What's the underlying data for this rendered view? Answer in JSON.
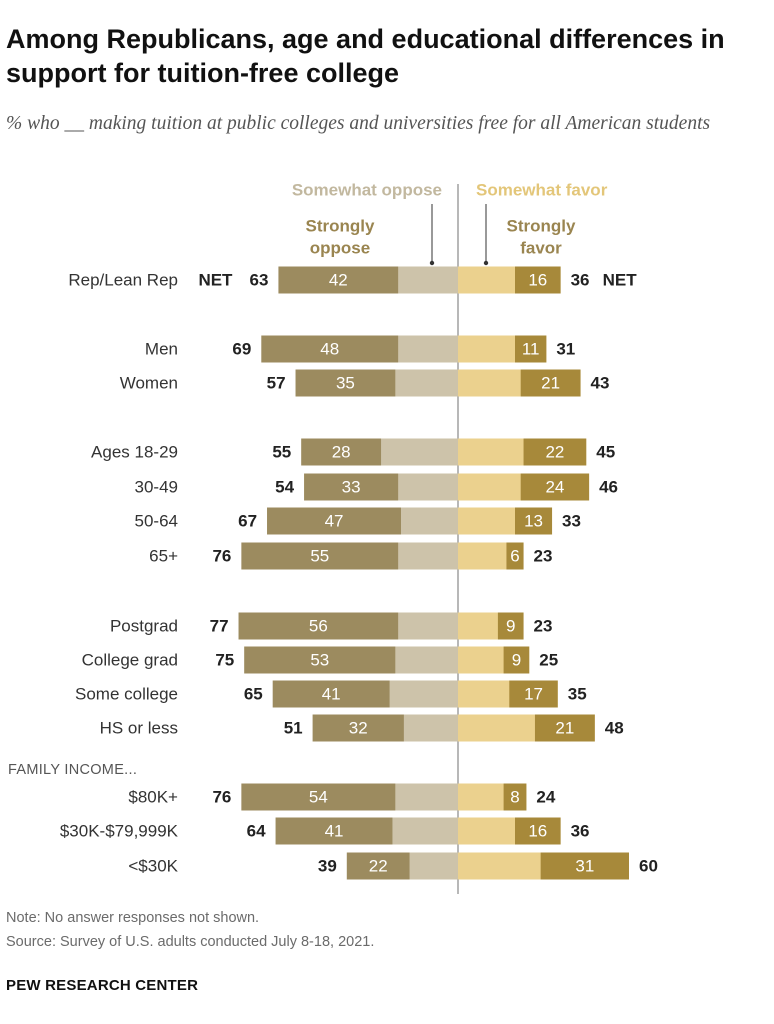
{
  "header": {
    "title": "Among Republicans, age and educational differences in support for tuition-free college",
    "subtitle": "% who __ making tuition at public colleges and universities free for all American students"
  },
  "legend": {
    "somewhat_oppose": "Somewhat oppose",
    "strongly_oppose": "Strongly oppose",
    "somewhat_favor": "Somewhat favor",
    "strongly_favor": "Strongly favor",
    "net_label": "NET"
  },
  "colors": {
    "strongly_oppose": "#9c8b5f",
    "somewhat_oppose": "#cdc3aa",
    "somewhat_favor": "#ebd18e",
    "strongly_favor": "#a7893a",
    "legend_somewhat_oppose_text": "#c2b89f",
    "legend_somewhat_favor_text": "#e3c679",
    "legend_strong_text": "#9a8550",
    "axis": "#888888"
  },
  "chart_data": {
    "type": "bar",
    "orientation": "horizontal",
    "layout": "diverging-stacked",
    "series": [
      {
        "name": "Strongly oppose"
      },
      {
        "name": "Somewhat oppose"
      },
      {
        "name": "Somewhat favor"
      },
      {
        "name": "Strongly favor"
      }
    ],
    "rows": [
      {
        "label": "Rep/Lean Rep",
        "strongly_oppose": 42,
        "oppose_net": 63,
        "strongly_favor": 16,
        "favor_net": 36,
        "show_net": true
      },
      {
        "label": "Men",
        "strongly_oppose": 48,
        "oppose_net": 69,
        "strongly_favor": 11,
        "favor_net": 31
      },
      {
        "label": "Women",
        "strongly_oppose": 35,
        "oppose_net": 57,
        "strongly_favor": 21,
        "favor_net": 43
      },
      {
        "label": "Ages 18-29",
        "strongly_oppose": 28,
        "oppose_net": 55,
        "strongly_favor": 22,
        "favor_net": 45
      },
      {
        "label": "30-49",
        "strongly_oppose": 33,
        "oppose_net": 54,
        "strongly_favor": 24,
        "favor_net": 46
      },
      {
        "label": "50-64",
        "strongly_oppose": 47,
        "oppose_net": 67,
        "strongly_favor": 13,
        "favor_net": 33
      },
      {
        "label": "65+",
        "strongly_oppose": 55,
        "oppose_net": 76,
        "strongly_favor": 6,
        "favor_net": 23
      },
      {
        "label": "Postgrad",
        "strongly_oppose": 56,
        "oppose_net": 77,
        "strongly_favor": 9,
        "favor_net": 23
      },
      {
        "label": "College grad",
        "strongly_oppose": 53,
        "oppose_net": 75,
        "strongly_favor": 9,
        "favor_net": 25
      },
      {
        "label": "Some college",
        "strongly_oppose": 41,
        "oppose_net": 65,
        "strongly_favor": 17,
        "favor_net": 35
      },
      {
        "label": "HS or less",
        "strongly_oppose": 32,
        "oppose_net": 51,
        "strongly_favor": 21,
        "favor_net": 48
      },
      {
        "label": "$80K+",
        "strongly_oppose": 54,
        "oppose_net": 76,
        "strongly_favor": 8,
        "favor_net": 24
      },
      {
        "label": "$30K-$79,999K",
        "strongly_oppose": 41,
        "oppose_net": 64,
        "strongly_favor": 16,
        "favor_net": 36
      },
      {
        "label": "<$30K",
        "strongly_oppose": 22,
        "oppose_net": 39,
        "strongly_favor": 31,
        "favor_net": 60
      }
    ],
    "section_headers": [
      {
        "label": "FAMILY INCOME...",
        "before_row": 11
      }
    ]
  },
  "footer": {
    "note": "Note: No answer responses not shown.",
    "source": "Source: Survey of U.S. adults conducted July 8-18, 2021.",
    "brand": "PEW RESEARCH CENTER"
  }
}
